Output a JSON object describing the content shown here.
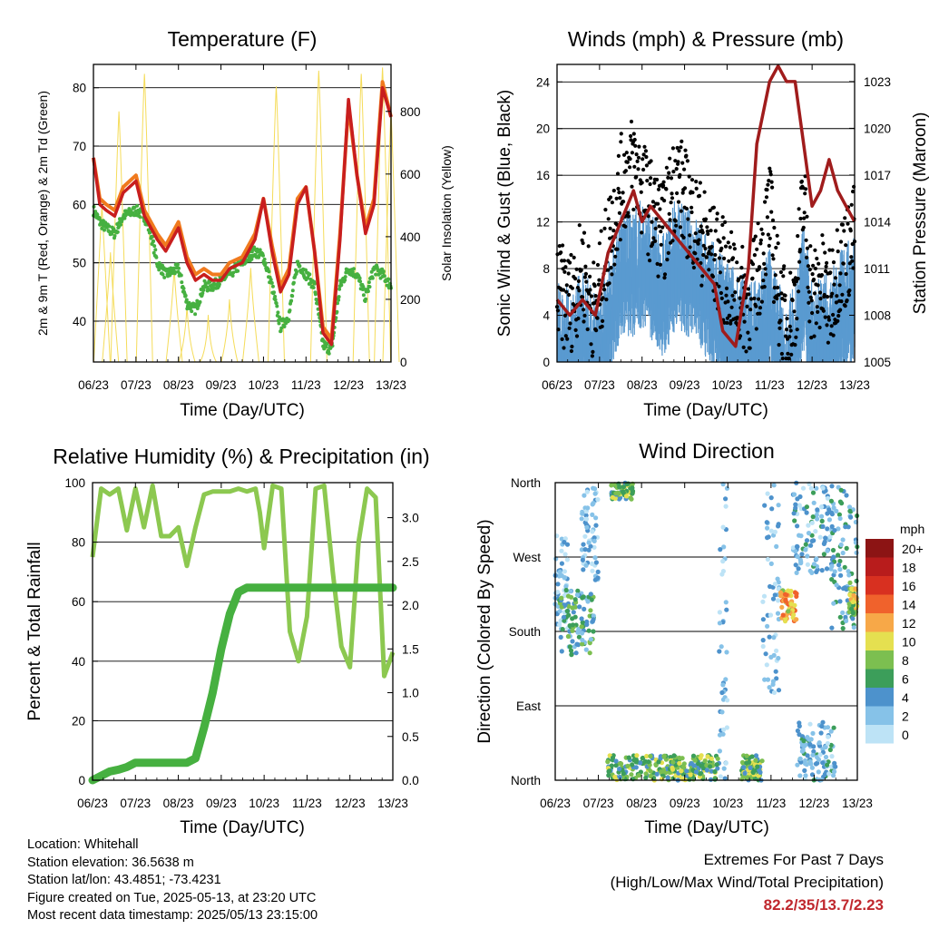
{
  "colors": {
    "temp_2m": "#c81e1e",
    "temp_9m": "#f07a1e",
    "dewpoint": "#46b040",
    "solar": "#f5dc5a",
    "wind": "#5a9ad0",
    "gust": "#000000",
    "pressure": "#a01c1c",
    "rh": "#8cc850",
    "precip": "#46b040"
  },
  "x_ticks": [
    "06/23",
    "07/23",
    "08/23",
    "09/23",
    "10/23",
    "11/23",
    "12/23",
    "13/23"
  ],
  "chart_data": [
    {
      "type": "line",
      "title": "Temperature (F)",
      "xlabel": "Time (Day/UTC)",
      "ylabel": "2m & 9m T (Red, Orange) & 2m Td (Green)",
      "ylabel_right": "Solar Insolation (Yellow)",
      "ylim": [
        33,
        84
      ],
      "y_ticks": [
        40,
        50,
        60,
        70,
        80
      ],
      "ylim_right": [
        0,
        950
      ],
      "y_ticks_right": [
        0,
        200,
        400,
        600,
        800
      ],
      "x": [
        0.0,
        0.15,
        0.3,
        0.5,
        0.7,
        1.0,
        1.2,
        1.35,
        1.5,
        1.7,
        2.0,
        2.2,
        2.4,
        2.6,
        2.8,
        3.0,
        3.2,
        3.5,
        3.8,
        4.0,
        4.2,
        4.4,
        4.6,
        4.8,
        5.0,
        5.2,
        5.4,
        5.6,
        5.8,
        6.0,
        6.2,
        6.4,
        6.6,
        6.8,
        7.0
      ],
      "series": [
        {
          "name": "2m T",
          "values": [
            68,
            60,
            59,
            58,
            62,
            64,
            58,
            56,
            54,
            52,
            56,
            50,
            47,
            48,
            47,
            47,
            49,
            50,
            54,
            61,
            52,
            45,
            48,
            60,
            63,
            52,
            38,
            36,
            54,
            78,
            65,
            55,
            60,
            80,
            75
          ]
        },
        {
          "name": "9m T",
          "values": [
            68,
            61,
            60,
            59,
            63,
            65,
            59,
            57,
            55,
            53,
            57,
            51,
            48,
            49,
            48,
            48,
            50,
            51,
            55,
            61,
            53,
            46,
            49,
            61,
            63,
            52,
            39,
            37,
            55,
            77,
            65,
            56,
            61,
            81,
            75
          ]
        },
        {
          "name": "2m Td",
          "values": [
            59,
            57,
            56,
            55,
            58,
            59,
            58,
            55,
            50,
            48,
            49,
            43,
            42,
            46,
            46,
            47,
            48,
            50,
            52,
            51,
            46,
            39,
            41,
            50,
            48,
            46,
            36,
            35,
            46,
            49,
            48,
            44,
            49,
            48,
            46
          ]
        }
      ],
      "solar_peaks": [
        {
          "x": 0.2,
          "value": 500
        },
        {
          "x": 0.4,
          "value": 350
        },
        {
          "x": 0.6,
          "value": 800
        },
        {
          "x": 1.2,
          "value": 920
        },
        {
          "x": 1.9,
          "value": 300
        },
        {
          "x": 2.2,
          "value": 180
        },
        {
          "x": 2.7,
          "value": 150
        },
        {
          "x": 3.2,
          "value": 200
        },
        {
          "x": 3.7,
          "value": 300
        },
        {
          "x": 4.3,
          "value": 880
        },
        {
          "x": 5.3,
          "value": 930
        },
        {
          "x": 6.3,
          "value": 920
        },
        {
          "x": 6.8,
          "value": 940
        },
        {
          "x": 7.0,
          "value": 800
        }
      ]
    },
    {
      "type": "scatter",
      "title": "Winds (mph) & Pressure (mb)",
      "xlabel": "Time (Day/UTC)",
      "ylabel": "Sonic Wind & Gust (Blue, Black)",
      "ylabel_right": "Station Pressure (Maroon)",
      "ylim": [
        0,
        25.5
      ],
      "y_ticks": [
        0,
        4,
        8,
        12,
        16,
        20,
        24
      ],
      "ylim_right": [
        1005,
        1024.1
      ],
      "y_ticks_right": [
        1005,
        1008,
        1011,
        1014,
        1017,
        1020,
        1023
      ],
      "x": [
        0.0,
        0.3,
        0.6,
        0.9,
        1.2,
        1.5,
        1.8,
        2.0,
        2.2,
        2.5,
        2.8,
        3.1,
        3.4,
        3.7,
        3.9,
        4.2,
        4.5,
        4.7,
        5.0,
        5.2,
        5.4,
        5.6,
        5.8,
        6.0,
        6.2,
        6.4,
        6.6,
        6.8,
        7.0
      ],
      "series": [
        {
          "name": "Wind",
          "values": [
            3,
            2,
            4,
            2,
            5,
            9,
            9,
            10,
            9,
            7,
            10,
            9,
            8,
            6,
            5,
            4,
            3,
            3,
            6,
            3,
            1,
            3,
            8,
            3,
            4,
            3,
            5,
            6,
            7
          ]
        },
        {
          "name": "Gust",
          "values": [
            6,
            5,
            8,
            4,
            10,
            15,
            17,
            15,
            13,
            11,
            16,
            13,
            11,
            9,
            8,
            6,
            5,
            7,
            13,
            6,
            3,
            5,
            14,
            5,
            7,
            5,
            8,
            9,
            11
          ]
        },
        {
          "name": "Pressure",
          "values": [
            1009,
            1008,
            1009,
            1008,
            1012,
            1014,
            1016,
            1014,
            1015,
            1014,
            1013,
            1012,
            1011,
            1010,
            1007,
            1006,
            1011,
            1019,
            1023,
            1024,
            1023,
            1023,
            1019,
            1015,
            1016,
            1018,
            1016,
            1015,
            1014
          ]
        }
      ]
    },
    {
      "type": "line",
      "title": "Relative Humidity (%) & Precipitation (in)",
      "xlabel": "Time (Day/UTC)",
      "ylabel": "Percent & Total Rainfall",
      "ylim": [
        0,
        100
      ],
      "y_ticks": [
        0,
        20,
        40,
        60,
        80,
        100
      ],
      "ylim_right": [
        0,
        3.4
      ],
      "y_ticks_right": [
        "0.0",
        "0.5",
        "1.0",
        "1.5",
        "2.0",
        "2.5",
        "3.0"
      ],
      "x": [
        0.0,
        0.2,
        0.4,
        0.6,
        0.8,
        1.0,
        1.2,
        1.4,
        1.6,
        1.8,
        2.0,
        2.2,
        2.4,
        2.6,
        2.8,
        3.0,
        3.2,
        3.4,
        3.6,
        3.8,
        3.9,
        4.0,
        4.2,
        4.4,
        4.6,
        4.8,
        5.0,
        5.2,
        5.4,
        5.6,
        5.8,
        6.0,
        6.2,
        6.4,
        6.6,
        6.8,
        7.0
      ],
      "series": [
        {
          "name": "RH",
          "values": [
            75,
            98,
            96,
            98,
            84,
            98,
            85,
            99,
            82,
            82,
            85,
            72,
            85,
            96,
            97,
            97,
            97,
            98,
            97,
            98,
            90,
            78,
            99,
            98,
            50,
            40,
            55,
            98,
            99,
            70,
            45,
            38,
            80,
            98,
            95,
            35,
            43
          ]
        },
        {
          "name": "Precip",
          "values": [
            0.0,
            0.05,
            0.1,
            0.12,
            0.15,
            0.2,
            0.2,
            0.2,
            0.2,
            0.2,
            0.2,
            0.2,
            0.25,
            0.6,
            1.0,
            1.5,
            1.9,
            2.15,
            2.2,
            2.2,
            2.2,
            2.2,
            2.2,
            2.2,
            2.2,
            2.2,
            2.2,
            2.2,
            2.2,
            2.2,
            2.2,
            2.2,
            2.2,
            2.2,
            2.2,
            2.2,
            2.2
          ]
        }
      ]
    },
    {
      "type": "scatter",
      "title": "Wind Direction",
      "xlabel": "Time (Day/UTC)",
      "ylabel": "Direction (Colored By Speed)",
      "y_ticks": [
        "North",
        "East",
        "South",
        "West",
        "North"
      ],
      "legend_title": "mph",
      "legend_labels": [
        "0",
        "2",
        "4",
        "6",
        "8",
        "10",
        "12",
        "14",
        "16",
        "18",
        "20+"
      ],
      "legend_colors": [
        "#bde3f6",
        "#86c2e8",
        "#4d92cc",
        "#3c9e5a",
        "#7cbf50",
        "#e5e050",
        "#f7a848",
        "#f0622c",
        "#d83020",
        "#b81c1c",
        "#8c1414"
      ],
      "clusters": [
        {
          "x0": 0.0,
          "x1": 0.3,
          "dir0": 180,
          "dir1": 300,
          "spd": 2
        },
        {
          "x0": 0.1,
          "x1": 0.9,
          "dir0": 150,
          "dir1": 230,
          "spd": 5
        },
        {
          "x0": 0.6,
          "x1": 1.0,
          "dir0": 240,
          "dir1": 360,
          "spd": 2
        },
        {
          "x0": 1.3,
          "x1": 1.8,
          "dir0": 340,
          "dir1": 360,
          "spd": 7
        },
        {
          "x0": 1.2,
          "x1": 3.8,
          "dir0": 0,
          "dir1": 30,
          "spd": 7
        },
        {
          "x0": 3.8,
          "x1": 4.0,
          "dir0": 0,
          "dir1": 360,
          "spd": 2
        },
        {
          "x0": 4.3,
          "x1": 4.8,
          "dir0": 0,
          "dir1": 30,
          "spd": 7
        },
        {
          "x0": 4.8,
          "x1": 5.2,
          "dir0": 100,
          "dir1": 360,
          "spd": 2
        },
        {
          "x0": 5.2,
          "x1": 5.6,
          "dir0": 190,
          "dir1": 230,
          "spd": 11
        },
        {
          "x0": 5.5,
          "x1": 6.5,
          "dir0": 250,
          "dir1": 360,
          "spd": 3
        },
        {
          "x0": 5.6,
          "x1": 6.5,
          "dir0": 0,
          "dir1": 70,
          "spd": 3
        },
        {
          "x0": 6.4,
          "x1": 7.0,
          "dir0": 180,
          "dir1": 360,
          "spd": 4
        },
        {
          "x0": 6.8,
          "x1": 7.0,
          "dir0": 200,
          "dir1": 240,
          "spd": 9
        }
      ]
    }
  ],
  "info": {
    "location": "Location: Whitehall",
    "elevation": "Station elevation: 36.5638 m",
    "latlon": "Station lat/lon: 43.4851; -73.4231",
    "created": "Figure created on Tue, 2025-05-13, at 23:20 UTC",
    "recent": "Most recent data timestamp: 2025/05/13 23:15:00"
  },
  "extremes": {
    "title": "Extremes For Past 7 Days",
    "subtitle": "(High/Low/Max Wind/Total Precipitation)",
    "values": "82.2/35/13.7/2.23"
  }
}
